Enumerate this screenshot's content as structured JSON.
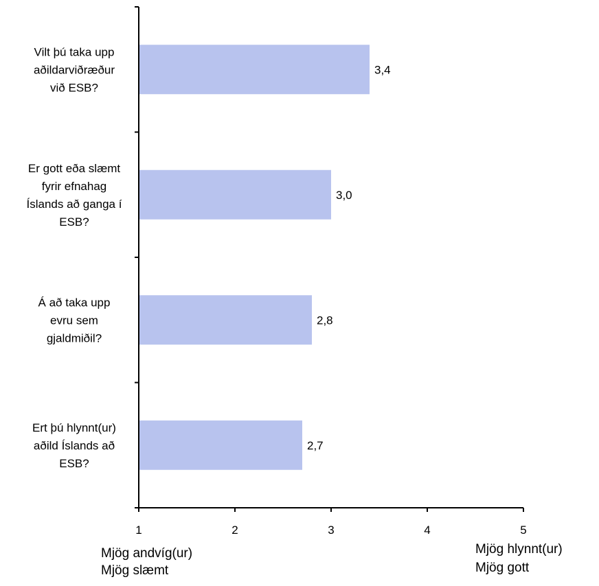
{
  "chart_data": {
    "type": "bar",
    "orientation": "horizontal",
    "categories": [
      [
        "Vilt þú taka upp",
        "aðildarviðræður",
        "við ESB?"
      ],
      [
        "Er gott eða slæmt",
        "fyrir efnahag",
        "Íslands að ganga í",
        "ESB?"
      ],
      [
        "Á að taka upp",
        "evru sem",
        "gjaldmiðil?"
      ],
      [
        "Ert þú hlynnt(ur)",
        "aðild Íslands að",
        "ESB?"
      ]
    ],
    "values": [
      3.4,
      3.0,
      2.8,
      2.7
    ],
    "data_labels": [
      "3,4",
      "3,0",
      "2,8",
      "2,7"
    ],
    "xlim": [
      1,
      5
    ],
    "x_ticks": [
      1,
      2,
      3,
      4,
      5
    ],
    "x_tick_labels": [
      "1",
      "2",
      "3",
      "4",
      "5"
    ],
    "axis_end_labels": {
      "low": [
        "Mjög andvíg(ur)",
        "Mjög slæmt"
      ],
      "high": [
        "Mjög hlynnt(ur)",
        "Mjög gott"
      ]
    },
    "grid": false,
    "legend": "none",
    "colors": {
      "bar": "#b8c3ee",
      "axis": "#000000"
    }
  }
}
